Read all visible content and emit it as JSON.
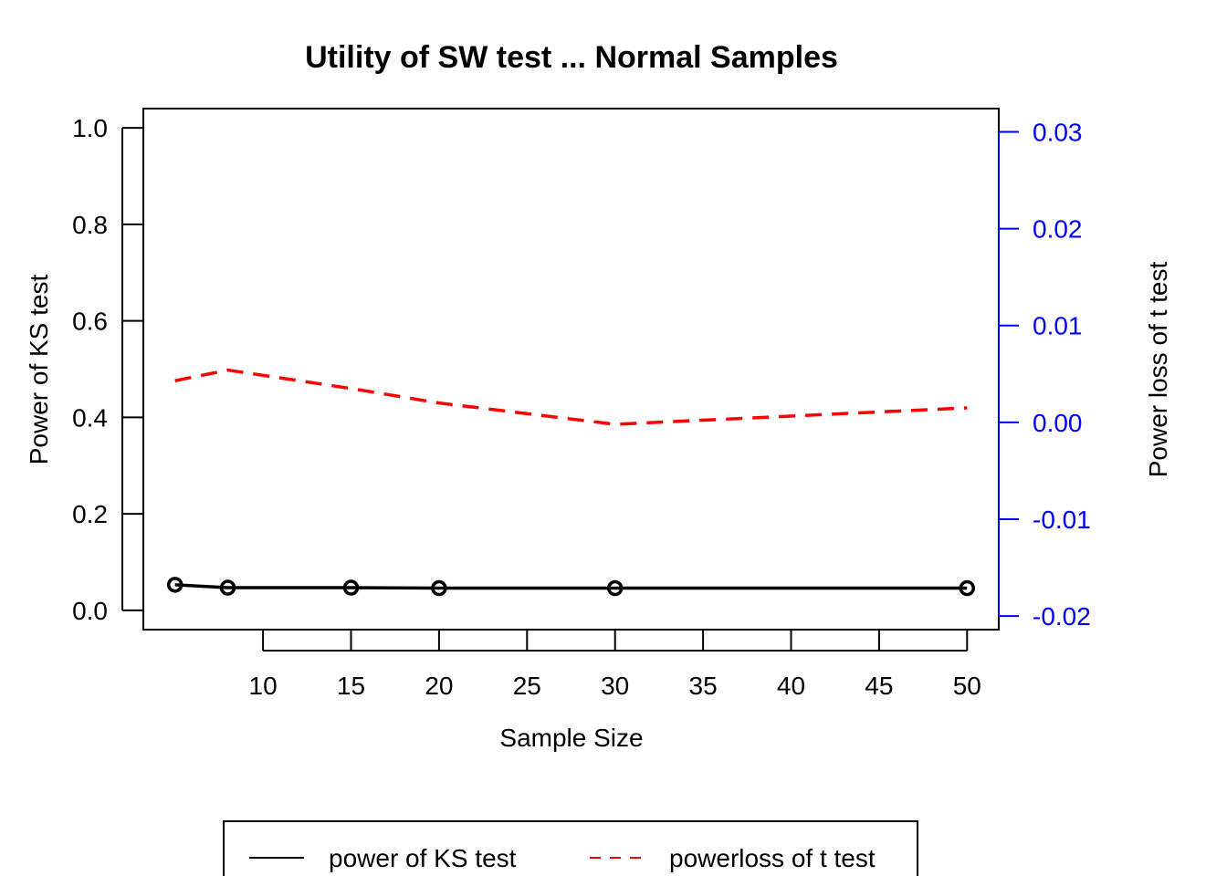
{
  "chart_data": {
    "type": "line",
    "title": "Utility of SW test ... Normal Samples",
    "xlabel": "Sample Size",
    "ylabel_left": "Power of KS test",
    "ylabel_right": "Power loss of t test",
    "xlim": [
      3.2,
      51.8
    ],
    "ylim_left": [
      -0.04,
      1.04
    ],
    "ylim_right": [
      -0.0214,
      0.0324
    ],
    "x_ticks": [
      10,
      15,
      20,
      25,
      30,
      35,
      40,
      45,
      50
    ],
    "y_ticks_left": [
      "0.0",
      "0.2",
      "0.4",
      "0.6",
      "0.8",
      "1.0"
    ],
    "y_ticks_right": [
      "-0.02",
      "-0.01",
      "0.00",
      "0.01",
      "0.02",
      "0.03"
    ],
    "grid": false,
    "legend_position": "bottom-center",
    "right_axis_color": "#0000ff",
    "series": [
      {
        "name": "power of KS test",
        "axis": "left",
        "color": "#000000",
        "style": "solid",
        "markers": "open-circle",
        "x": [
          5,
          8,
          15,
          20,
          30,
          50
        ],
        "y": [
          0.053,
          0.047,
          0.047,
          0.046,
          0.046,
          0.046
        ]
      },
      {
        "name": "powerloss of t test",
        "axis": "right",
        "color": "#ff0000",
        "style": "dashed",
        "markers": "none",
        "x": [
          5,
          8,
          15,
          20,
          30,
          50
        ],
        "y": [
          0.0043,
          0.0054,
          0.0035,
          0.002,
          -0.0002,
          0.0015
        ]
      }
    ]
  }
}
